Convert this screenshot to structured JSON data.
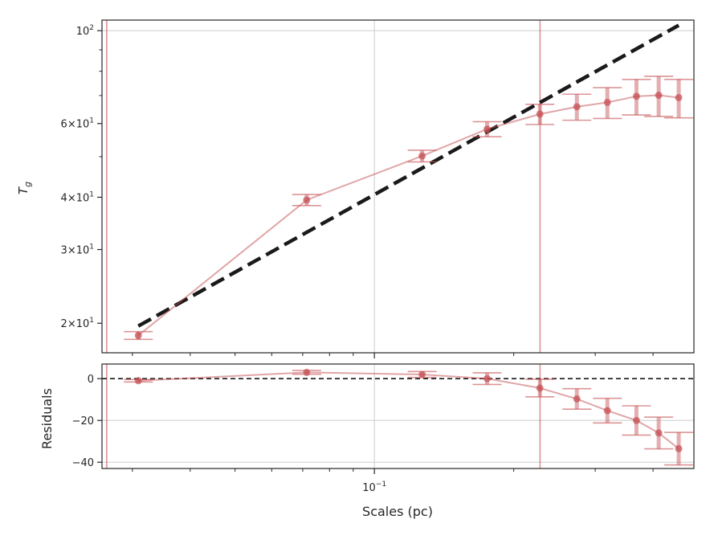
{
  "colors": {
    "data": "#c44e52",
    "fit": "#1a1a1a",
    "grid": "#d3d3d3",
    "frame": "#262626"
  },
  "chart_data": [
    {
      "type": "scatter",
      "panel": "main",
      "x_scale": "log",
      "y_scale": "log",
      "ylabel": "T_g",
      "ylim": [
        17,
        106
      ],
      "y_ticks": [
        {
          "value": 20,
          "label": "2×10^1"
        },
        {
          "value": 30,
          "label": "3×10^1"
        },
        {
          "value": 40,
          "label": "4×10^1"
        },
        {
          "value": 60,
          "label": "6×10^1"
        },
        {
          "value": 100,
          "label": "10^2"
        }
      ],
      "vlines_x": [
        0.0264,
        0.228
      ],
      "series": [
        {
          "kind": "data-with-errorbars",
          "x": [
            0.0309,
            0.0714,
            0.1268,
            0.1752,
            0.2278,
            0.2738,
            0.3187,
            0.3683,
            0.4114,
            0.4545
          ],
          "y": [
            18.7,
            39.4,
            50.2,
            58.2,
            63.2,
            65.8,
            67.4,
            69.7,
            70.1,
            69.2
          ],
          "yerr": [
            0.4,
            1.2,
            1.6,
            2.4,
            3.5,
            4.7,
            5.7,
            6.8,
            7.7,
            7.3
          ]
        },
        {
          "kind": "power-law-fit",
          "x": [
            0.0309,
            0.4545
          ],
          "y": [
            19.7,
            103.0
          ]
        }
      ]
    },
    {
      "type": "scatter",
      "panel": "residuals",
      "x_scale": "log",
      "xlabel": "Scales (pc)",
      "ylabel": "Residuals",
      "ylim": [
        -43,
        7
      ],
      "y_ticks": [
        {
          "value": 0,
          "label": "0"
        },
        {
          "value": -20,
          "label": "−20"
        },
        {
          "value": -40,
          "label": "−40"
        }
      ],
      "x_ticks": [
        {
          "value": 0.1,
          "label": "10^−1"
        }
      ],
      "hline_y": 0,
      "vlines_x": [
        0.0264,
        0.228
      ],
      "series": [
        {
          "kind": "residuals",
          "x": [
            0.0309,
            0.0714,
            0.1268,
            0.1752,
            0.2278,
            0.2738,
            0.3187,
            0.3683,
            0.4114,
            0.4545
          ],
          "y": [
            -1,
            3.0,
            2.0,
            0.0,
            -4.5,
            -9.7,
            -15.3,
            -20.0,
            -26.0,
            -33.5
          ],
          "yerr": [
            0.6,
            0.9,
            1.4,
            2.8,
            4.2,
            4.9,
            5.9,
            7.0,
            7.6,
            7.8
          ]
        }
      ]
    }
  ]
}
